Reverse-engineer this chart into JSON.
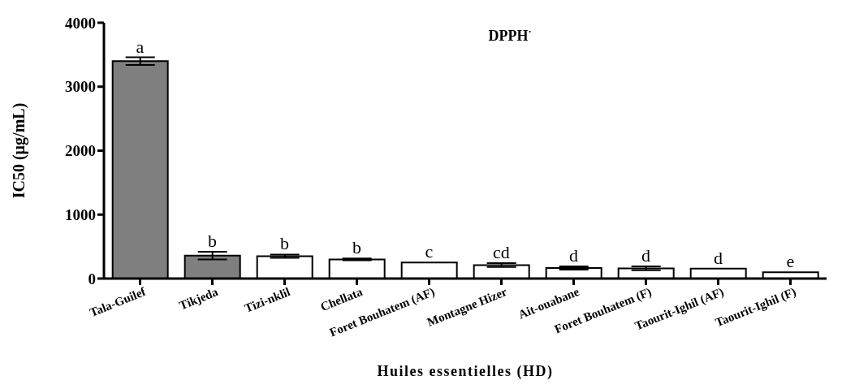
{
  "chart_data": {
    "type": "bar",
    "title": "DPPH$^{·}$",
    "xlabel": "Huiles essentielles (HD)",
    "ylabel": "IC50 (µg/mL)",
    "categories": [
      "Tala-Guilef",
      "Tikjeda",
      "Tizi-nklil",
      "Chellata",
      "Foret Bouhatem (AF)",
      "Montagne Hizer",
      "Ait-ouabane",
      "Foret Bouhatem (F)",
      "Taourit-Ighil (AF)",
      "Taourit-Ighil (F)"
    ],
    "values": [
      3400,
      360,
      350,
      300,
      250,
      210,
      165,
      160,
      155,
      100
    ],
    "errors": [
      60,
      60,
      25,
      15,
      null,
      30,
      25,
      30,
      null,
      null
    ],
    "colors": [
      "#7f7f7f",
      "#7f7f7f",
      "#ffffff",
      "#ffffff",
      "#ffffff",
      "#ffffff",
      "#ffffff",
      "#ffffff",
      "#ffffff",
      "#ffffff"
    ],
    "ylim": [
      0,
      4000
    ],
    "yticks": [
      0,
      1000,
      2000,
      3000,
      4000
    ],
    "grid": false,
    "annotations": [
      {
        "text": "a",
        "x": "Tala-Guilef",
        "y": 3460
      },
      {
        "text": "b",
        "x": "Tikjeda",
        "y": 420
      },
      {
        "text": "b",
        "x": "Tizi-nklil",
        "y": 375
      },
      {
        "text": "b",
        "x": "Chellata",
        "y": 315
      },
      {
        "text": "c",
        "x": "Foret Bouhatem (AF)",
        "y": 250
      },
      {
        "text": "cd",
        "x": "Montagne Hizer",
        "y": 240
      },
      {
        "text": "d",
        "x": "Ait-ouabane",
        "y": 190
      },
      {
        "text": "d",
        "x": "Foret Bouhatem (F)",
        "y": 190
      },
      {
        "text": "d",
        "x": "Taourit-Ighil (AF)",
        "y": 155
      },
      {
        "text": "e",
        "x": "Taourit-Ighil (F)",
        "y": 100
      }
    ]
  }
}
